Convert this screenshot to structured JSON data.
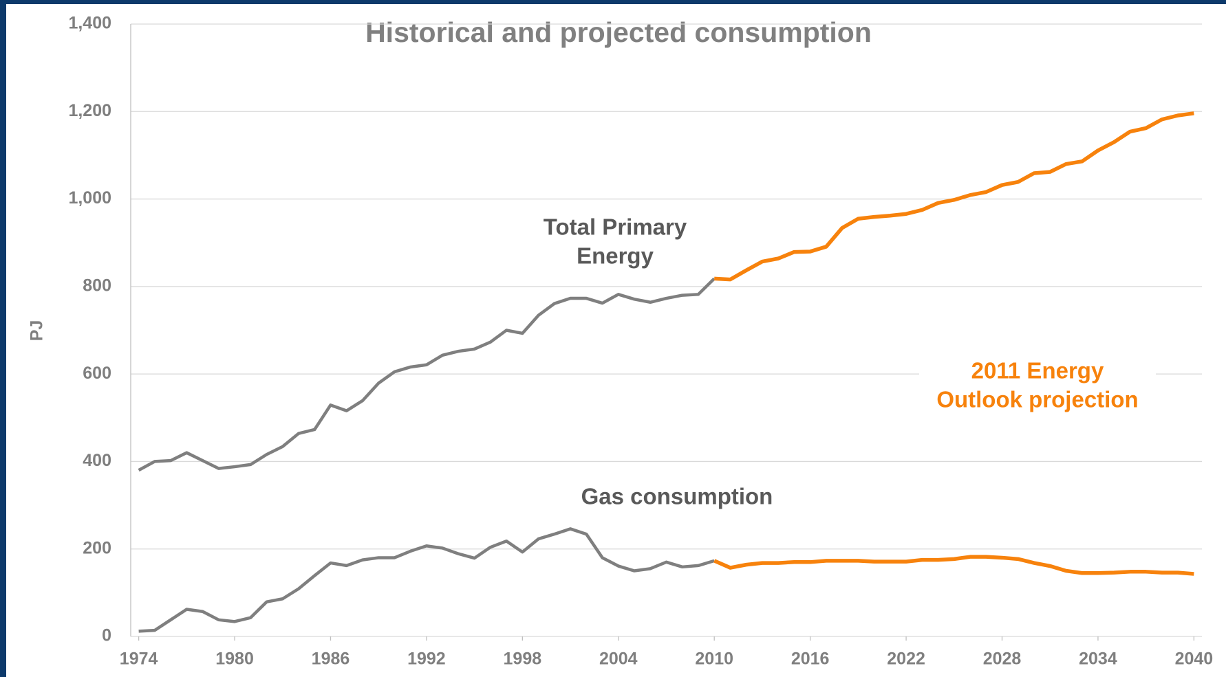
{
  "chart_data": {
    "type": "line",
    "title": "Historical and projected consumption",
    "y_label": "PJ",
    "annotations": [
      {
        "lines": [
          "Total Primary",
          "Energy"
        ],
        "color": "#595959"
      },
      {
        "lines": [
          "Gas consumption"
        ],
        "color": "#595959"
      },
      {
        "lines": [
          "2011 Energy",
          "Outlook projection"
        ],
        "color": "#f7820c"
      }
    ],
    "x": [
      1974,
      1975,
      1976,
      1977,
      1978,
      1979,
      1980,
      1981,
      1982,
      1983,
      1984,
      1985,
      1986,
      1987,
      1988,
      1989,
      1990,
      1991,
      1992,
      1993,
      1994,
      1995,
      1996,
      1997,
      1998,
      1999,
      2000,
      2001,
      2002,
      2003,
      2004,
      2005,
      2006,
      2007,
      2008,
      2009,
      2010,
      2011,
      2012,
      2013,
      2014,
      2015,
      2016,
      2017,
      2018,
      2019,
      2020,
      2021,
      2022,
      2023,
      2024,
      2025,
      2026,
      2027,
      2028,
      2029,
      2030,
      2031,
      2032,
      2033,
      2034,
      2035,
      2036,
      2037,
      2038,
      2039,
      2040
    ],
    "series": [
      {
        "color": "#7f7f7f",
        "values": [
          380,
          400,
          402,
          420,
          402,
          384,
          388,
          393,
          416,
          434,
          464,
          473,
          529,
          516,
          539,
          579,
          605,
          616,
          621,
          643,
          652,
          657,
          673,
          700,
          693,
          734,
          761,
          773,
          773,
          762,
          782,
          771,
          764,
          773,
          780,
          782,
          818,
          null,
          null,
          null,
          null,
          null,
          null,
          null,
          null,
          null,
          null,
          null,
          null,
          null,
          null,
          null,
          null,
          null,
          null,
          null,
          null,
          null,
          null,
          null,
          null,
          null,
          null,
          null,
          null,
          null,
          null
        ]
      },
      {
        "color": "#f7820c",
        "values": [
          null,
          null,
          null,
          null,
          null,
          null,
          null,
          null,
          null,
          null,
          null,
          null,
          null,
          null,
          null,
          null,
          null,
          null,
          null,
          null,
          null,
          null,
          null,
          null,
          null,
          null,
          null,
          null,
          null,
          null,
          null,
          null,
          null,
          null,
          null,
          null,
          818,
          816,
          837,
          857,
          864,
          879,
          880,
          891,
          934,
          955,
          959,
          962,
          966,
          975,
          991,
          998,
          1009,
          1016,
          1032,
          1039,
          1059,
          1062,
          1080,
          1086,
          1111,
          1130,
          1154,
          1162,
          1182,
          1191,
          1196
        ]
      },
      {
        "color": "#7f7f7f",
        "values": [
          12,
          14,
          38,
          62,
          57,
          38,
          34,
          43,
          79,
          86,
          109,
          139,
          168,
          162,
          175,
          180,
          180,
          195,
          207,
          202,
          189,
          179,
          204,
          218,
          193,
          223,
          234,
          246,
          234,
          180,
          161,
          150,
          155,
          170,
          159,
          162,
          173,
          null,
          null,
          null,
          null,
          null,
          null,
          null,
          null,
          null,
          null,
          null,
          null,
          null,
          null,
          null,
          null,
          null,
          null,
          null,
          null,
          null,
          null,
          null,
          null,
          null,
          null,
          null,
          null,
          null,
          null
        ]
      },
      {
        "color": "#f7820c",
        "values": [
          null,
          null,
          null,
          null,
          null,
          null,
          null,
          null,
          null,
          null,
          null,
          null,
          null,
          null,
          null,
          null,
          null,
          null,
          null,
          null,
          null,
          null,
          null,
          null,
          null,
          null,
          null,
          null,
          null,
          null,
          null,
          null,
          null,
          null,
          null,
          null,
          173,
          157,
          164,
          168,
          168,
          170,
          170,
          173,
          173,
          173,
          171,
          171,
          171,
          175,
          175,
          177,
          182,
          182,
          180,
          177,
          168,
          161,
          150,
          145,
          145,
          146,
          148,
          148,
          146,
          146,
          143
        ]
      }
    ],
    "xlim": [
      1973.5,
      2040.5
    ],
    "xticks": [
      1974,
      1980,
      1986,
      1992,
      1998,
      2004,
      2010,
      2016,
      2022,
      2028,
      2034,
      2040
    ],
    "ylim": [
      0,
      1400
    ],
    "yticks": [
      0,
      200,
      400,
      600,
      800,
      {
        "value": 1000,
        "label": "1,000"
      },
      {
        "value": 1200,
        "label": "1,200"
      },
      {
        "value": 1400,
        "label": "1,400"
      }
    ],
    "grid": true
  }
}
